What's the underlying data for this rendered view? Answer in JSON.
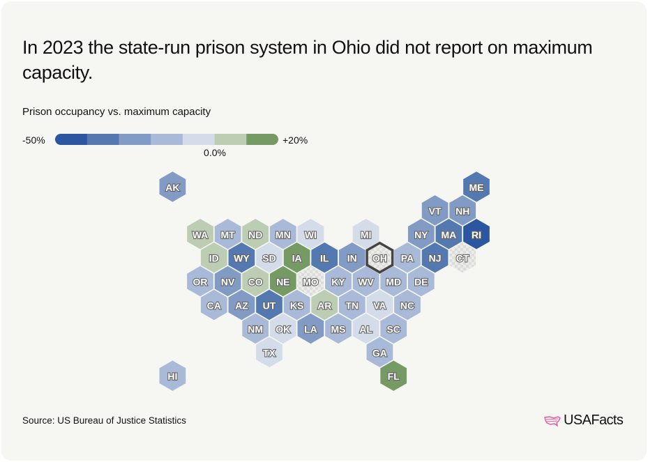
{
  "title": "In 2023 the state-run prison system in Ohio did not report on maximum capacity.",
  "source": "Source: US Bureau of Justice Statistics",
  "logo_text": "USAFacts",
  "colors": {
    "background": "#f6f6f2",
    "highlight_stroke": "#444444",
    "no_data": "#e6e6e6",
    "logo_accent": "#e8559a"
  },
  "chart_data": {
    "type": "hex-map choropleth",
    "subtitle": "Prison occupancy vs. maximum capacity",
    "legend": {
      "min_label": "-50%",
      "max_label": "+20%",
      "mid_label": "0.0%",
      "bins": [
        {
          "range": "-50% to -40%",
          "color": "#2c57a0"
        },
        {
          "range": "-40% to -30%",
          "color": "#5479b0"
        },
        {
          "range": "-30% to -20%",
          "color": "#819bc4"
        },
        {
          "range": "-20% to -10%",
          "color": "#a9bad8"
        },
        {
          "range": "-10% to 0%",
          "color": "#d4dcea"
        },
        {
          "range": "0% to +10%",
          "color": "#bccdb3"
        },
        {
          "range": "+10% to +20%",
          "color": "#759a63"
        }
      ]
    },
    "highlighted_state": "OH",
    "states": [
      {
        "abbr": "AK",
        "bin": 2,
        "row": 0,
        "col": -1
      },
      {
        "abbr": "ME",
        "bin": 1,
        "row": 0,
        "col": 10
      },
      {
        "abbr": "VT",
        "bin": 2,
        "row": 1,
        "col": 8
      },
      {
        "abbr": "NH",
        "bin": 2,
        "row": 1,
        "col": 9
      },
      {
        "abbr": "WA",
        "bin": 5,
        "row": 2,
        "col": 0
      },
      {
        "abbr": "MT",
        "bin": 3,
        "row": 2,
        "col": 1
      },
      {
        "abbr": "ND",
        "bin": 5,
        "row": 2,
        "col": 2
      },
      {
        "abbr": "MN",
        "bin": 3,
        "row": 2,
        "col": 3
      },
      {
        "abbr": "WI",
        "bin": 4,
        "row": 2,
        "col": 4
      },
      {
        "abbr": "MI",
        "bin": 4,
        "row": 2,
        "col": 6
      },
      {
        "abbr": "NY",
        "bin": 2,
        "row": 2,
        "col": 8
      },
      {
        "abbr": "MA",
        "bin": 1,
        "row": 2,
        "col": 9
      },
      {
        "abbr": "RI",
        "bin": 0,
        "row": 2,
        "col": 10
      },
      {
        "abbr": "ID",
        "bin": 5,
        "row": 3,
        "col": 0
      },
      {
        "abbr": "WY",
        "bin": 1,
        "row": 3,
        "col": 1
      },
      {
        "abbr": "SD",
        "bin": 4,
        "row": 3,
        "col": 2
      },
      {
        "abbr": "IA",
        "bin": 6,
        "row": 3,
        "col": 3
      },
      {
        "abbr": "IL",
        "bin": 1,
        "row": 3,
        "col": 4
      },
      {
        "abbr": "IN",
        "bin": 2,
        "row": 3,
        "col": 5
      },
      {
        "abbr": "OH",
        "bin": null,
        "row": 3,
        "col": 6
      },
      {
        "abbr": "PA",
        "bin": 3,
        "row": 3,
        "col": 7
      },
      {
        "abbr": "NJ",
        "bin": 1,
        "row": 3,
        "col": 8
      },
      {
        "abbr": "CT",
        "bin": null,
        "row": 3,
        "col": 9
      },
      {
        "abbr": "OR",
        "bin": 3,
        "row": 4,
        "col": 0
      },
      {
        "abbr": "NV",
        "bin": 2,
        "row": 4,
        "col": 1
      },
      {
        "abbr": "CO",
        "bin": 5,
        "row": 4,
        "col": 2
      },
      {
        "abbr": "NE",
        "bin": 6,
        "row": 4,
        "col": 3
      },
      {
        "abbr": "MO",
        "bin": null,
        "row": 4,
        "col": 4
      },
      {
        "abbr": "KY",
        "bin": 3,
        "row": 4,
        "col": 5
      },
      {
        "abbr": "WV",
        "bin": 3,
        "row": 4,
        "col": 6
      },
      {
        "abbr": "MD",
        "bin": 3,
        "row": 4,
        "col": 7
      },
      {
        "abbr": "DE",
        "bin": 3,
        "row": 4,
        "col": 8
      },
      {
        "abbr": "CA",
        "bin": 3,
        "row": 5,
        "col": 0
      },
      {
        "abbr": "AZ",
        "bin": 2,
        "row": 5,
        "col": 1
      },
      {
        "abbr": "UT",
        "bin": 1,
        "row": 5,
        "col": 2
      },
      {
        "abbr": "KS",
        "bin": 3,
        "row": 5,
        "col": 3
      },
      {
        "abbr": "AR",
        "bin": 5,
        "row": 5,
        "col": 4
      },
      {
        "abbr": "TN",
        "bin": 3,
        "row": 5,
        "col": 5
      },
      {
        "abbr": "VA",
        "bin": 4,
        "row": 5,
        "col": 6
      },
      {
        "abbr": "NC",
        "bin": 3,
        "row": 5,
        "col": 7
      },
      {
        "abbr": "NM",
        "bin": 3,
        "row": 6,
        "col": 2
      },
      {
        "abbr": "OK",
        "bin": 4,
        "row": 6,
        "col": 3
      },
      {
        "abbr": "LA",
        "bin": 2,
        "row": 6,
        "col": 4
      },
      {
        "abbr": "MS",
        "bin": 3,
        "row": 6,
        "col": 5
      },
      {
        "abbr": "AL",
        "bin": 4,
        "row": 6,
        "col": 6
      },
      {
        "abbr": "SC",
        "bin": 3,
        "row": 6,
        "col": 7
      },
      {
        "abbr": "TX",
        "bin": 4,
        "row": 7,
        "col": 2
      },
      {
        "abbr": "GA",
        "bin": 3,
        "row": 7,
        "col": 6
      },
      {
        "abbr": "HI",
        "bin": 3,
        "row": 8,
        "col": -1
      },
      {
        "abbr": "FL",
        "bin": 6,
        "row": 8,
        "col": 7
      }
    ]
  }
}
